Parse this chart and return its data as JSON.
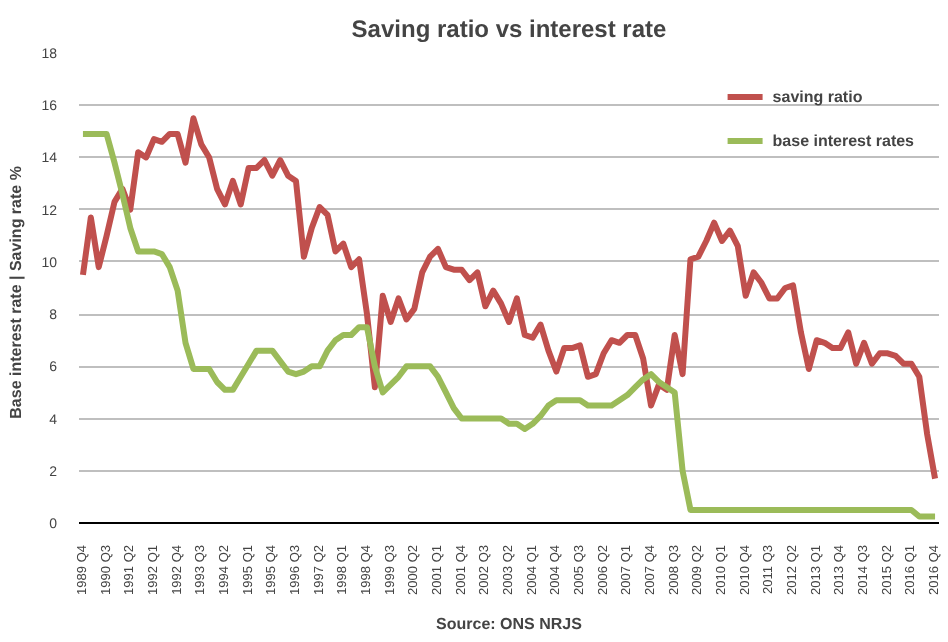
{
  "chart_data": {
    "type": "line",
    "title": "Saving ratio vs interest rate",
    "ylabel": "Base interest rate  |  Saving rate %",
    "annotations": [
      "Source: ONS NRJS"
    ],
    "categories": [
      "1989 Q4",
      null,
      null,
      "1990 Q3",
      null,
      null,
      "1991 Q2",
      null,
      null,
      "1992 Q1",
      null,
      null,
      "1992 Q4",
      null,
      null,
      "1993 Q3",
      null,
      null,
      "1994 Q2",
      null,
      null,
      "1995 Q1",
      null,
      null,
      "1995 Q4",
      null,
      null,
      "1996 Q3",
      null,
      null,
      "1997 Q2",
      null,
      null,
      "1998 Q1",
      null,
      null,
      "1998 Q4",
      null,
      null,
      "1999 Q3",
      null,
      null,
      "2000 Q2",
      null,
      null,
      "2001 Q1",
      null,
      null,
      "2001 Q4",
      null,
      null,
      "2002 Q3",
      null,
      null,
      "2003 Q2",
      null,
      null,
      "2004 Q1",
      null,
      null,
      "2004 Q4",
      null,
      null,
      "2005 Q3",
      null,
      null,
      "2006 Q2",
      null,
      null,
      "2007 Q1",
      null,
      null,
      "2007 Q4",
      null,
      null,
      "2008 Q3",
      null,
      null,
      "2009 Q2",
      null,
      null,
      "2010 Q1",
      null,
      null,
      "2010 Q4",
      null,
      null,
      "2011 Q3",
      null,
      null,
      "2012 Q2",
      null,
      null,
      "2013 Q1",
      null,
      null,
      "2013 Q4",
      null,
      null,
      "2014 Q3",
      null,
      null,
      "2015 Q2",
      null,
      null,
      "2016 Q1",
      null,
      null,
      "2016 Q4"
    ],
    "series": [
      {
        "name": "saving ratio",
        "color": "#c0504d",
        "values": [
          9.5,
          11.7,
          9.8,
          11.0,
          12.3,
          12.8,
          12.0,
          14.2,
          14.0,
          14.7,
          14.6,
          14.9,
          14.9,
          13.8,
          15.5,
          14.5,
          14.0,
          12.8,
          12.2,
          13.1,
          12.2,
          13.6,
          13.6,
          13.9,
          13.3,
          13.9,
          13.3,
          13.1,
          10.2,
          11.3,
          12.1,
          11.8,
          10.4,
          10.7,
          9.8,
          10.1,
          8.0,
          5.2,
          8.7,
          7.7,
          8.6,
          7.8,
          8.2,
          9.6,
          10.2,
          10.5,
          9.8,
          9.7,
          9.7,
          9.3,
          9.6,
          8.3,
          8.9,
          8.4,
          7.7,
          8.6,
          7.2,
          7.1,
          7.6,
          6.6,
          5.8,
          6.7,
          6.7,
          6.8,
          5.6,
          5.7,
          6.5,
          7.0,
          6.9,
          7.2,
          7.2,
          6.3,
          4.5,
          5.3,
          5.1,
          7.2,
          5.7,
          10.1,
          10.2,
          10.8,
          11.5,
          10.8,
          11.2,
          10.6,
          8.7,
          9.6,
          9.2,
          8.6,
          8.6,
          9.0,
          9.1,
          7.3,
          5.9,
          7.0,
          6.9,
          6.7,
          6.7,
          7.3,
          6.1,
          6.9,
          6.1,
          6.5,
          6.5,
          6.4,
          6.1,
          6.1,
          5.6,
          3.4,
          1.7
        ]
      },
      {
        "name": "base interest rates",
        "color": "#9bbb59",
        "values": [
          14.9,
          14.9,
          14.9,
          14.9,
          13.8,
          12.6,
          11.3,
          10.4,
          10.4,
          10.4,
          10.3,
          9.8,
          8.9,
          6.9,
          5.9,
          5.9,
          5.9,
          5.4,
          5.1,
          5.1,
          5.6,
          6.1,
          6.6,
          6.6,
          6.6,
          6.2,
          5.8,
          5.7,
          5.8,
          6.0,
          6.0,
          6.6,
          7.0,
          7.2,
          7.2,
          7.5,
          7.5,
          6.0,
          5.0,
          5.3,
          5.6,
          6.0,
          6.0,
          6.0,
          6.0,
          5.6,
          5.0,
          4.4,
          4.0,
          4.0,
          4.0,
          4.0,
          4.0,
          4.0,
          3.8,
          3.8,
          3.6,
          3.8,
          4.1,
          4.5,
          4.7,
          4.7,
          4.7,
          4.7,
          4.5,
          4.5,
          4.5,
          4.5,
          4.7,
          4.9,
          5.2,
          5.5,
          5.7,
          5.4,
          5.2,
          5.0,
          2.0,
          0.5,
          0.5,
          0.5,
          0.5,
          0.5,
          0.5,
          0.5,
          0.5,
          0.5,
          0.5,
          0.5,
          0.5,
          0.5,
          0.5,
          0.5,
          0.5,
          0.5,
          0.5,
          0.5,
          0.5,
          0.5,
          0.5,
          0.5,
          0.5,
          0.5,
          0.5,
          0.5,
          0.5,
          0.5,
          0.25,
          0.25,
          0.25
        ]
      }
    ],
    "ylim": [
      0,
      18
    ],
    "yticks": [
      0,
      2,
      4,
      6,
      8,
      10,
      12,
      14,
      16,
      18
    ],
    "grid": "y",
    "legend": "top right"
  }
}
